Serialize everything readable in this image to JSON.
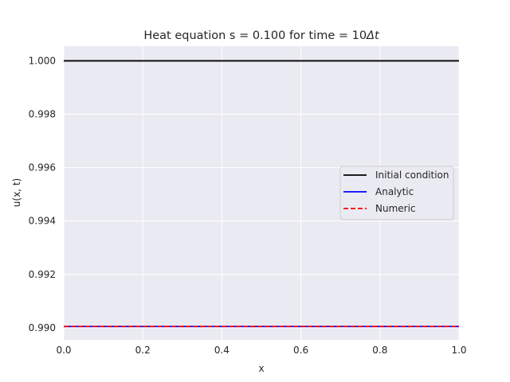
{
  "chart_data": {
    "type": "line",
    "title": "Heat equation s = 0.100 for time = 10",
    "title_symbol": "Δt",
    "xlabel": "x",
    "ylabel": "u(x, t)",
    "xlim": [
      0.0,
      1.0
    ],
    "ylim": [
      0.98955,
      1.00055
    ],
    "x_ticks": [
      0.0,
      0.2,
      0.4,
      0.6,
      0.8,
      1.0
    ],
    "x_tick_labels": [
      "0.0",
      "0.2",
      "0.4",
      "0.6",
      "0.8",
      "1.0"
    ],
    "y_ticks": [
      0.99,
      0.992,
      0.994,
      0.996,
      0.998,
      1.0
    ],
    "y_tick_labels": [
      "0.990",
      "0.992",
      "0.994",
      "0.996",
      "0.998",
      "1.000"
    ],
    "grid": true,
    "legend_position": "center-right",
    "x": [
      0.0,
      1.0
    ],
    "series": [
      {
        "name": "Initial condition",
        "values": [
          1.0,
          1.0
        ],
        "color": "#000000",
        "dash": "solid"
      },
      {
        "name": "Analytic",
        "values": [
          0.99005,
          0.99005
        ],
        "color": "#0000ff",
        "dash": "solid"
      },
      {
        "name": "Numeric",
        "values": [
          0.99005,
          0.99005
        ],
        "color": "#ff0000",
        "dash": "dashed"
      }
    ]
  },
  "colors": {
    "plot_background": "#eaeaf2",
    "grid": "#ffffff",
    "text": "#262626"
  }
}
